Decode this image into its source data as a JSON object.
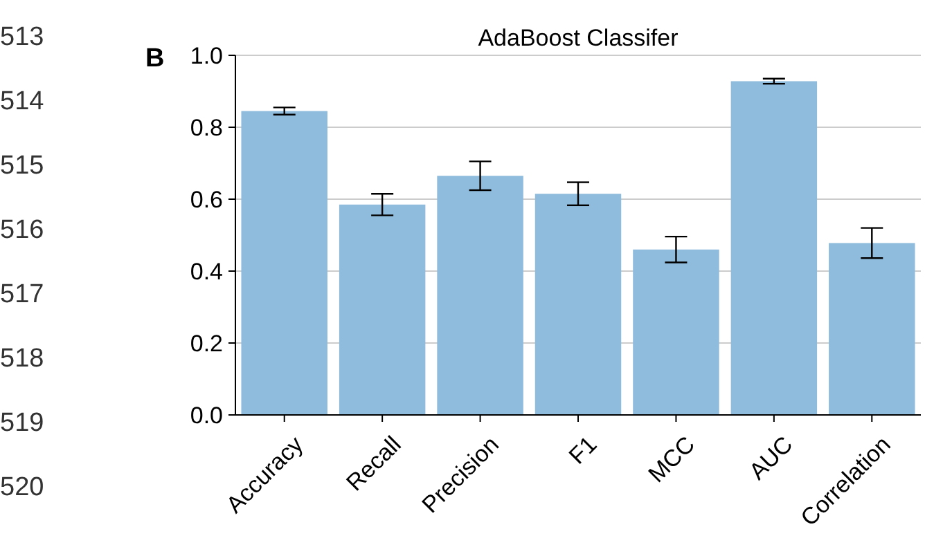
{
  "chart_data": {
    "type": "bar",
    "title": "AdaBoost Classifer",
    "categories": [
      "Accuracy",
      "Recall",
      "Precision",
      "F1",
      "MCC",
      "AUC",
      "Correlation"
    ],
    "values": [
      0.845,
      0.585,
      0.665,
      0.615,
      0.46,
      0.928,
      0.478
    ],
    "errors": [
      0.01,
      0.03,
      0.04,
      0.032,
      0.036,
      0.007,
      0.042
    ],
    "color": "#8fbcdc",
    "ylim": [
      0,
      1
    ],
    "yticks": [
      {
        "value": 0,
        "label": "0.0"
      },
      {
        "value": 0.2,
        "label": "0.2"
      },
      {
        "value": 0.4,
        "label": "0.4"
      },
      {
        "value": 0.6,
        "label": "0.6"
      },
      {
        "value": 0.8,
        "label": "0.8"
      },
      {
        "value": 1,
        "label": "1.0"
      }
    ],
    "grid": "y",
    "annotations": [
      "B",
      "513",
      "514",
      "515",
      "516",
      "517",
      "518",
      "519",
      "520"
    ]
  }
}
